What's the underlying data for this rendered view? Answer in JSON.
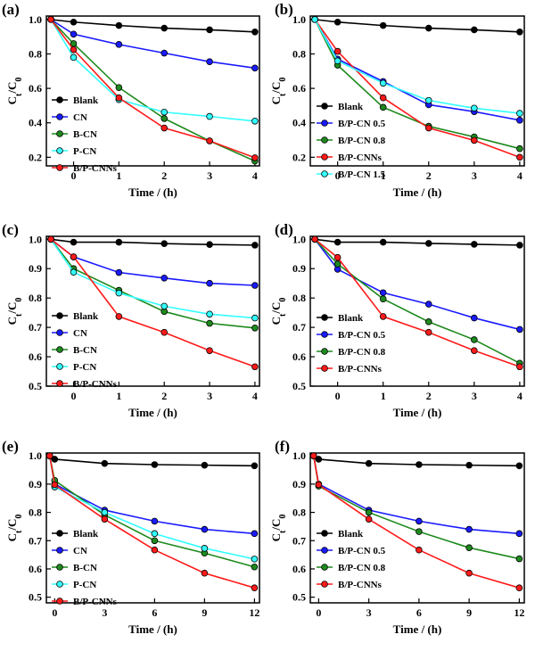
{
  "chart_data": [
    {
      "panel": "(a)",
      "type": "line",
      "xlabel": "Time / (h)",
      "ylabel": "Ct/C0",
      "xlim": [
        -0.6,
        4.1
      ],
      "ylim": [
        0.15,
        1.02
      ],
      "xticks": [
        "0",
        "1",
        "2",
        "3",
        "4"
      ],
      "yticks": [
        "0.2",
        "0.4",
        "0.6",
        "0.8",
        "1.0"
      ],
      "legend_position": "left-middle",
      "series": [
        {
          "name": "Blank",
          "color": "#000000",
          "x": [
            -0.5,
            0,
            1,
            2,
            3,
            4
          ],
          "y": [
            1.0,
            0.985,
            0.965,
            0.95,
            0.94,
            0.928
          ]
        },
        {
          "name": "CN",
          "color": "#1a1aff",
          "x": [
            -0.5,
            0,
            1,
            2,
            3,
            4
          ],
          "y": [
            1.0,
            0.915,
            0.855,
            0.805,
            0.755,
            0.718
          ]
        },
        {
          "name": "B-CN",
          "color": "#1e8a1e",
          "x": [
            -0.5,
            0,
            1,
            2,
            3,
            4
          ],
          "y": [
            1.0,
            0.86,
            0.605,
            0.425,
            0.295,
            0.178
          ]
        },
        {
          "name": "P-CN",
          "color": "#33ffff",
          "x": [
            -0.5,
            0,
            1,
            2,
            3,
            4
          ],
          "y": [
            1.0,
            0.78,
            0.535,
            0.462,
            0.437,
            0.41
          ]
        },
        {
          "name": "B/P-CNNs",
          "color": "#ff1a1a",
          "x": [
            -0.5,
            0,
            1,
            2,
            3,
            4
          ],
          "y": [
            1.0,
            0.825,
            0.545,
            0.37,
            0.295,
            0.197
          ]
        }
      ]
    },
    {
      "panel": "(b)",
      "type": "line",
      "xlabel": "Time / (h)",
      "ylabel": "Ct/C0",
      "xlim": [
        -0.6,
        4.1
      ],
      "ylim": [
        0.15,
        1.02
      ],
      "xticks": [
        "0",
        "1",
        "2",
        "3",
        "4"
      ],
      "yticks": [
        "0.2",
        "0.4",
        "0.6",
        "0.8",
        "1.0"
      ],
      "legend_position": "left-middle",
      "series": [
        {
          "name": "Blank",
          "color": "#000000",
          "x": [
            -0.5,
            0,
            1,
            2,
            3,
            4
          ],
          "y": [
            1.0,
            0.985,
            0.965,
            0.95,
            0.94,
            0.928
          ]
        },
        {
          "name": "B/P-CN 0.5",
          "color": "#1a1aff",
          "x": [
            -0.5,
            0,
            1,
            2,
            3,
            4
          ],
          "y": [
            1.0,
            0.77,
            0.64,
            0.505,
            0.465,
            0.415
          ]
        },
        {
          "name": "B/P-CN 0.8",
          "color": "#1e8a1e",
          "x": [
            -0.5,
            0,
            1,
            2,
            3,
            4
          ],
          "y": [
            1.0,
            0.735,
            0.49,
            0.38,
            0.318,
            0.25
          ]
        },
        {
          "name": "B/P-CNNs",
          "color": "#ff1a1a",
          "x": [
            -0.5,
            0,
            1,
            2,
            3,
            4
          ],
          "y": [
            1.0,
            0.815,
            0.545,
            0.37,
            0.298,
            0.2
          ]
        },
        {
          "name": "B/P-CN 1.5",
          "color": "#33ffff",
          "x": [
            -0.5,
            0,
            1,
            2,
            3,
            4
          ],
          "y": [
            1.0,
            0.76,
            0.63,
            0.53,
            0.485,
            0.455
          ]
        }
      ]
    },
    {
      "panel": "(c)",
      "type": "line",
      "xlabel": "Time / (h)",
      "ylabel": "Ct/C0",
      "xlim": [
        -0.6,
        4.1
      ],
      "ylim": [
        0.5,
        1.01
      ],
      "xticks": [
        "0",
        "1",
        "2",
        "3",
        "4"
      ],
      "yticks": [
        "0.5",
        "0.6",
        "0.7",
        "0.8",
        "0.9",
        "1.0"
      ],
      "legend_position": "left-middle",
      "series": [
        {
          "name": "Blank",
          "color": "#000000",
          "x": [
            -0.5,
            0,
            1,
            2,
            3,
            4
          ],
          "y": [
            1.0,
            0.99,
            0.99,
            0.985,
            0.982,
            0.98
          ]
        },
        {
          "name": "CN",
          "color": "#1a1aff",
          "x": [
            -0.5,
            0,
            1,
            2,
            3,
            4
          ],
          "y": [
            1.0,
            0.94,
            0.887,
            0.868,
            0.85,
            0.843
          ]
        },
        {
          "name": "B-CN",
          "color": "#1e8a1e",
          "x": [
            -0.5,
            0,
            1,
            2,
            3,
            4
          ],
          "y": [
            1.0,
            0.9,
            0.826,
            0.754,
            0.714,
            0.698
          ]
        },
        {
          "name": "P-CN",
          "color": "#33ffff",
          "x": [
            -0.5,
            0,
            1,
            2,
            3,
            4
          ],
          "y": [
            1.0,
            0.888,
            0.817,
            0.772,
            0.745,
            0.732
          ]
        },
        {
          "name": "B/P-CNNs",
          "color": "#ff1a1a",
          "x": [
            -0.5,
            0,
            1,
            2,
            3,
            4
          ],
          "y": [
            1.0,
            0.94,
            0.737,
            0.683,
            0.621,
            0.566
          ]
        }
      ]
    },
    {
      "panel": "(d)",
      "type": "line",
      "xlabel": "Time / (h)",
      "ylabel": "Ct/C0",
      "xlim": [
        -0.6,
        4.1
      ],
      "ylim": [
        0.5,
        1.01
      ],
      "xticks": [
        "0",
        "1",
        "2",
        "3",
        "4"
      ],
      "yticks": [
        "0.5",
        "0.6",
        "0.7",
        "0.8",
        "0.9",
        "1.0"
      ],
      "legend_position": "left-middle",
      "series": [
        {
          "name": "Blank",
          "color": "#000000",
          "x": [
            -0.5,
            0,
            1,
            2,
            3,
            4
          ],
          "y": [
            1.0,
            0.99,
            0.99,
            0.986,
            0.983,
            0.98
          ]
        },
        {
          "name": "B/P-CN 0.5",
          "color": "#1a1aff",
          "x": [
            -0.5,
            0,
            1,
            2,
            3,
            4
          ],
          "y": [
            1.0,
            0.898,
            0.818,
            0.779,
            0.732,
            0.693
          ]
        },
        {
          "name": "B/P-CN 0.8",
          "color": "#1e8a1e",
          "x": [
            -0.5,
            0,
            1,
            2,
            3,
            4
          ],
          "y": [
            1.0,
            0.916,
            0.797,
            0.719,
            0.658,
            0.578
          ]
        },
        {
          "name": "B/P-CNNs",
          "color": "#ff1a1a",
          "x": [
            -0.5,
            0,
            1,
            2,
            3,
            4
          ],
          "y": [
            1.0,
            0.938,
            0.737,
            0.683,
            0.621,
            0.566
          ]
        }
      ]
    },
    {
      "panel": "(e)",
      "type": "line",
      "xlabel": "Time / (h)",
      "ylabel": "Ct/C0",
      "xlim": [
        -0.5,
        12.3
      ],
      "ylim": [
        0.48,
        1.01
      ],
      "xticks": [
        "0",
        "3",
        "6",
        "9",
        "12"
      ],
      "yticks": [
        "0.5",
        "0.6",
        "0.7",
        "0.8",
        "0.9",
        "1.0"
      ],
      "legend_position": "left-bottom",
      "series": [
        {
          "name": "Blank",
          "color": "#000000",
          "x": [
            -0.3,
            0,
            3,
            6,
            9,
            12
          ],
          "y": [
            1.0,
            0.988,
            0.973,
            0.969,
            0.967,
            0.965
          ]
        },
        {
          "name": "CN",
          "color": "#1a1aff",
          "x": [
            -0.3,
            0,
            3,
            6,
            9,
            12
          ],
          "y": [
            1.0,
            0.9,
            0.808,
            0.769,
            0.74,
            0.725
          ]
        },
        {
          "name": "B-CN",
          "color": "#1e8a1e",
          "x": [
            -0.3,
            0,
            3,
            6,
            9,
            12
          ],
          "y": [
            1.0,
            0.913,
            0.791,
            0.7,
            0.656,
            0.607
          ]
        },
        {
          "name": "P-CN",
          "color": "#33ffff",
          "x": [
            -0.3,
            0,
            3,
            6,
            9,
            12
          ],
          "y": [
            1.0,
            0.89,
            0.8,
            0.725,
            0.673,
            0.635
          ]
        },
        {
          "name": "B/P-CNNs",
          "color": "#ff1a1a",
          "x": [
            -0.3,
            0,
            3,
            6,
            9,
            12
          ],
          "y": [
            1.0,
            0.898,
            0.776,
            0.667,
            0.585,
            0.533
          ]
        }
      ]
    },
    {
      "panel": "(f)",
      "type": "line",
      "xlabel": "Time / (h)",
      "ylabel": "Ct/C0",
      "xlim": [
        -0.5,
        12.3
      ],
      "ylim": [
        0.48,
        1.01
      ],
      "xticks": [
        "0",
        "3",
        "6",
        "9",
        "12"
      ],
      "yticks": [
        "0.5",
        "0.6",
        "0.7",
        "0.8",
        "0.9",
        "1.0"
      ],
      "legend_position": "left-bottom",
      "series": [
        {
          "name": "Blank",
          "color": "#000000",
          "x": [
            -0.3,
            0,
            3,
            6,
            9,
            12
          ],
          "y": [
            1.0,
            0.988,
            0.973,
            0.969,
            0.967,
            0.965
          ]
        },
        {
          "name": "B/P-CN 0.5",
          "color": "#1a1aff",
          "x": [
            -0.3,
            0,
            3,
            6,
            9,
            12
          ],
          "y": [
            1.0,
            0.9,
            0.808,
            0.769,
            0.74,
            0.725
          ]
        },
        {
          "name": "B/P-CN 0.8",
          "color": "#1e8a1e",
          "x": [
            -0.3,
            0,
            3,
            6,
            9,
            12
          ],
          "y": [
            1.0,
            0.893,
            0.8,
            0.732,
            0.675,
            0.636
          ]
        },
        {
          "name": "B/P-CNNs",
          "color": "#ff1a1a",
          "x": [
            -0.3,
            0,
            3,
            6,
            9,
            12
          ],
          "y": [
            1.0,
            0.898,
            0.776,
            0.667,
            0.585,
            0.533
          ]
        }
      ]
    }
  ]
}
